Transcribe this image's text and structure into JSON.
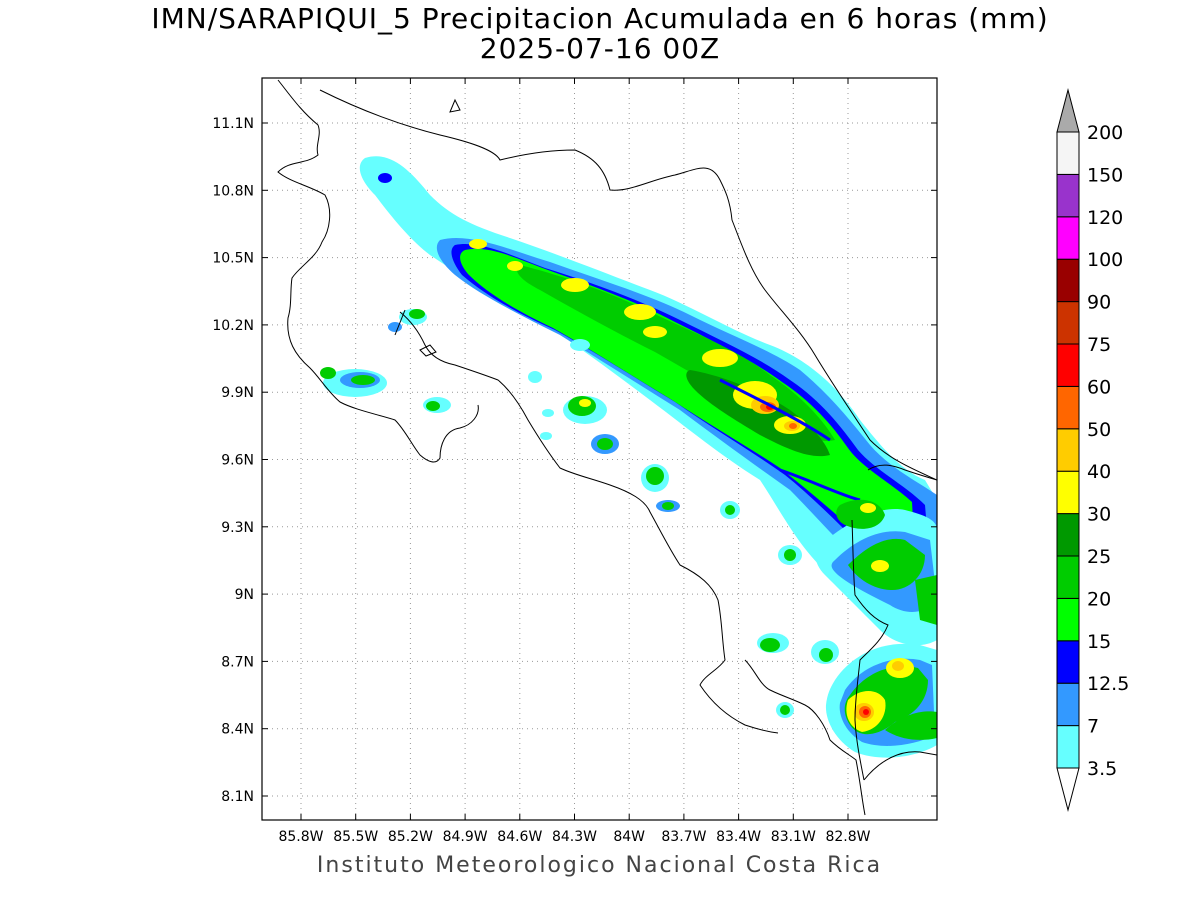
{
  "title": {
    "line1": "IMN/SARAPIQUI_5 Precipitacion Acumulada en 6 horas (mm)",
    "line2": "2025-07-16 00Z"
  },
  "footer": "Instituto Meteorologico Nacional Costa Rica",
  "axes": {
    "lat_ticks": [
      "11.1N",
      "10.8N",
      "10.5N",
      "10.2N",
      "9.9N",
      "9.6N",
      "9.3N",
      "9N",
      "8.7N",
      "8.4N",
      "8.1N"
    ],
    "lon_ticks": [
      "85.8W",
      "85.5W",
      "85.2W",
      "84.9W",
      "84.6W",
      "84.3W",
      "84W",
      "83.7W",
      "83.4W",
      "83.1W",
      "82.8W"
    ],
    "grid": "dotted"
  },
  "colorbar": {
    "labels": [
      "3.5",
      "7",
      "12.5",
      "15",
      "20",
      "25",
      "30",
      "40",
      "50",
      "60",
      "75",
      "90",
      "100",
      "120",
      "150",
      "200"
    ],
    "colors": [
      "#66ffff",
      "#3399ff",
      "#0000ff",
      "#00ff00",
      "#00cc00",
      "#009900",
      "#ffff00",
      "#ffcc00",
      "#ff6600",
      "#ff0000",
      "#cc3300",
      "#990000",
      "#ff00ff",
      "#9933cc",
      "#f5f5f5"
    ],
    "under_color": "#ffffff",
    "over_color": "#aaaaaa"
  }
}
